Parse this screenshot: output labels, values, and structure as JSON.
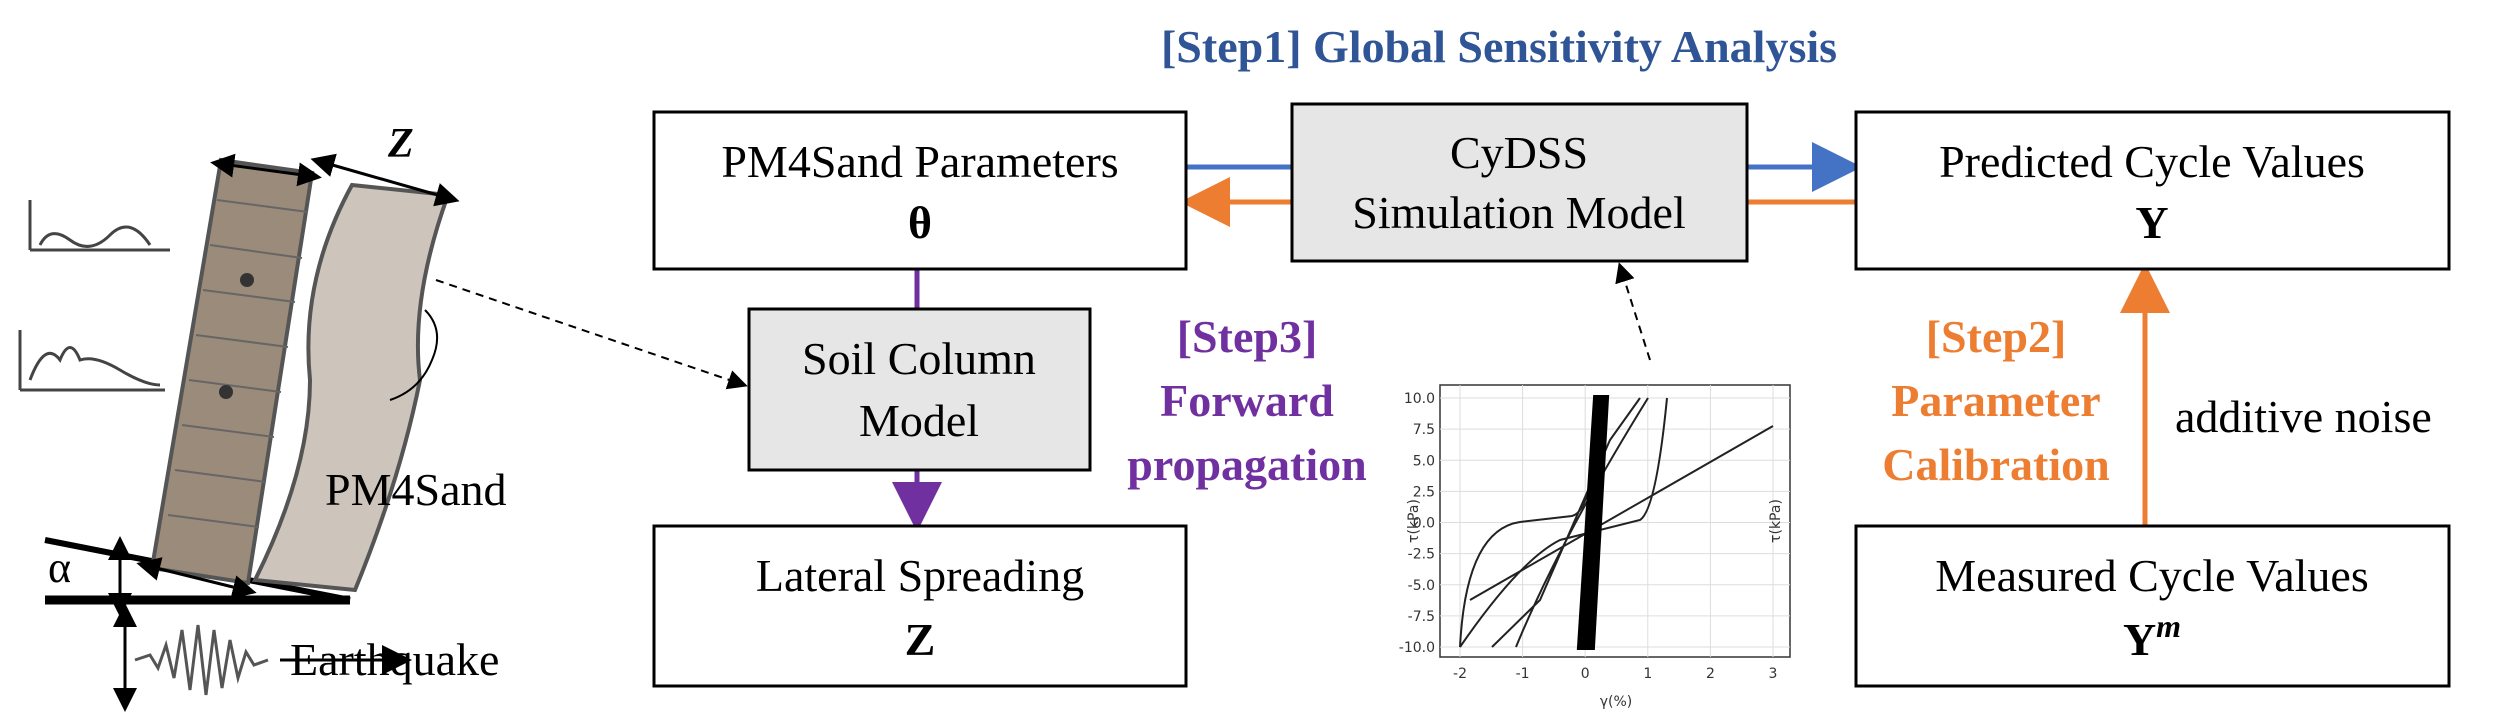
{
  "title": "[Step1] Global Sensitivity Analysis",
  "boxes": {
    "parameters": {
      "label": "PM4Sand Parameters",
      "symbol": "θ"
    },
    "simulation": {
      "line1": "CyDSS",
      "line2": "Simulation Model"
    },
    "predicted": {
      "label": "Predicted Cycle Values",
      "symbol": "Y"
    },
    "soil_column": {
      "line1": "Soil Column",
      "line2": "Model"
    },
    "lateral": {
      "label": "Lateral Spreading",
      "symbol": "Z"
    },
    "measured": {
      "label": "Measured Cycle Values",
      "symbol": "Y",
      "superscript": "m"
    }
  },
  "step3": [
    "[Step3]",
    "Forward",
    "propagation"
  ],
  "step2": [
    "[Step2]",
    "Parameter",
    "Calibration"
  ],
  "noise": "additive noise",
  "illustration": {
    "z_label": "Z",
    "material": "PM4Sand",
    "angle": "α",
    "input": "Earthquake"
  },
  "inset": {
    "y_label": "τ(kPa)",
    "y2_label": "τ(kPa)",
    "x_label": "γ(%)",
    "yticks": [
      "10.0",
      "7.5",
      "5.0",
      "2.5",
      "0.0",
      "-2.5",
      "-5.0",
      "-7.5",
      "-10.0"
    ],
    "xticks": [
      "-2",
      "-1",
      "0",
      "1",
      "2",
      "3"
    ]
  }
}
